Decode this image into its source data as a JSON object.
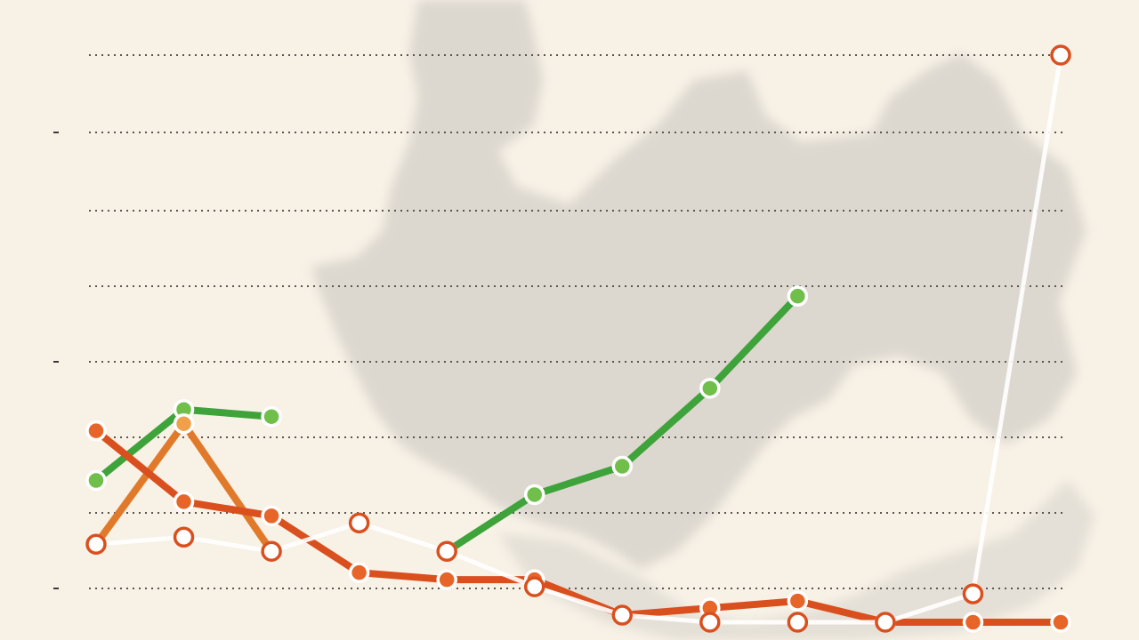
{
  "chart_data": {
    "type": "line",
    "title": "",
    "xlabel": "",
    "ylabel": "",
    "x": [
      1,
      2,
      3,
      4,
      5,
      6,
      7,
      8,
      9,
      10,
      11,
      12
    ],
    "xlim": [
      1,
      12
    ],
    "ylim": [
      0,
      8
    ],
    "grid": true,
    "legend": "none",
    "series": [
      {
        "color": "#3ea33a",
        "point_fill": "#6fbf4a",
        "values": [
          2.0,
          3.0,
          2.9,
          null,
          1.0,
          1.8,
          2.2,
          3.3,
          4.6,
          null,
          null,
          null
        ]
      },
      {
        "color": "#e07a2a",
        "point_fill": "#f0a04a",
        "values": [
          1.1,
          2.8,
          1.0,
          null,
          null,
          null,
          null,
          null,
          null,
          null,
          null,
          null
        ]
      },
      {
        "color": "#d9501e",
        "point_fill": "#e8652a",
        "values": [
          2.7,
          1.7,
          1.5,
          0.7,
          0.6,
          0.6,
          0.1,
          0.2,
          0.3,
          0.0,
          0.0,
          0.0
        ]
      },
      {
        "color": "#ffffff",
        "point_fill": "#ffffff",
        "values": [
          1.1,
          1.2,
          1.0,
          1.4,
          1.0,
          0.5,
          0.1,
          0.0,
          0.0,
          0.0,
          0.4,
          8.0
        ]
      }
    ],
    "ticks": [
      "",
      "",
      "",
      "",
      "",
      "",
      "",
      "",
      ""
    ]
  }
}
